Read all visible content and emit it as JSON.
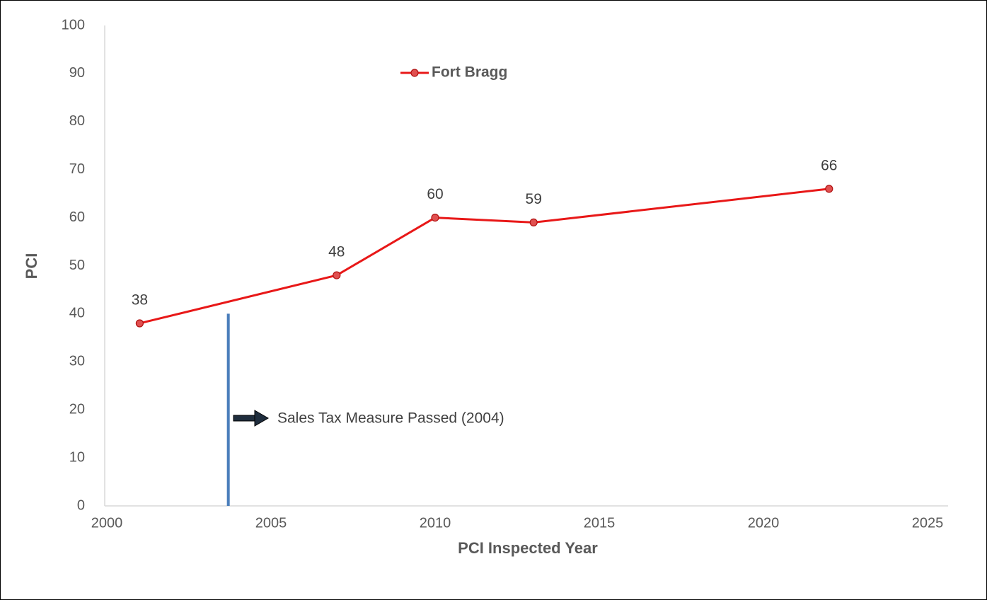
{
  "chart_data": {
    "type": "line",
    "x_label": "PCI Inspected Year",
    "y_label": "PCI",
    "x": [
      2001,
      2007,
      2010,
      2013,
      2022
    ],
    "series": [
      {
        "name": "Fort Bragg",
        "color": "#e81818",
        "values": [
          38,
          48,
          60,
          59,
          66
        ]
      }
    ],
    "xlim": [
      2000,
      2025
    ],
    "xticks": [
      2000,
      2005,
      2010,
      2015,
      2020,
      2025
    ],
    "ylim": [
      0,
      100
    ],
    "yticks": [
      0,
      10,
      20,
      30,
      40,
      50,
      60,
      70,
      80,
      90,
      100
    ],
    "grid": false,
    "legend": "top",
    "annotation": {
      "text": "Sales Tax Measure Passed (2004)",
      "x": 2003.7,
      "y_range": [
        0,
        40
      ],
      "color": "#4a7ebb"
    }
  }
}
